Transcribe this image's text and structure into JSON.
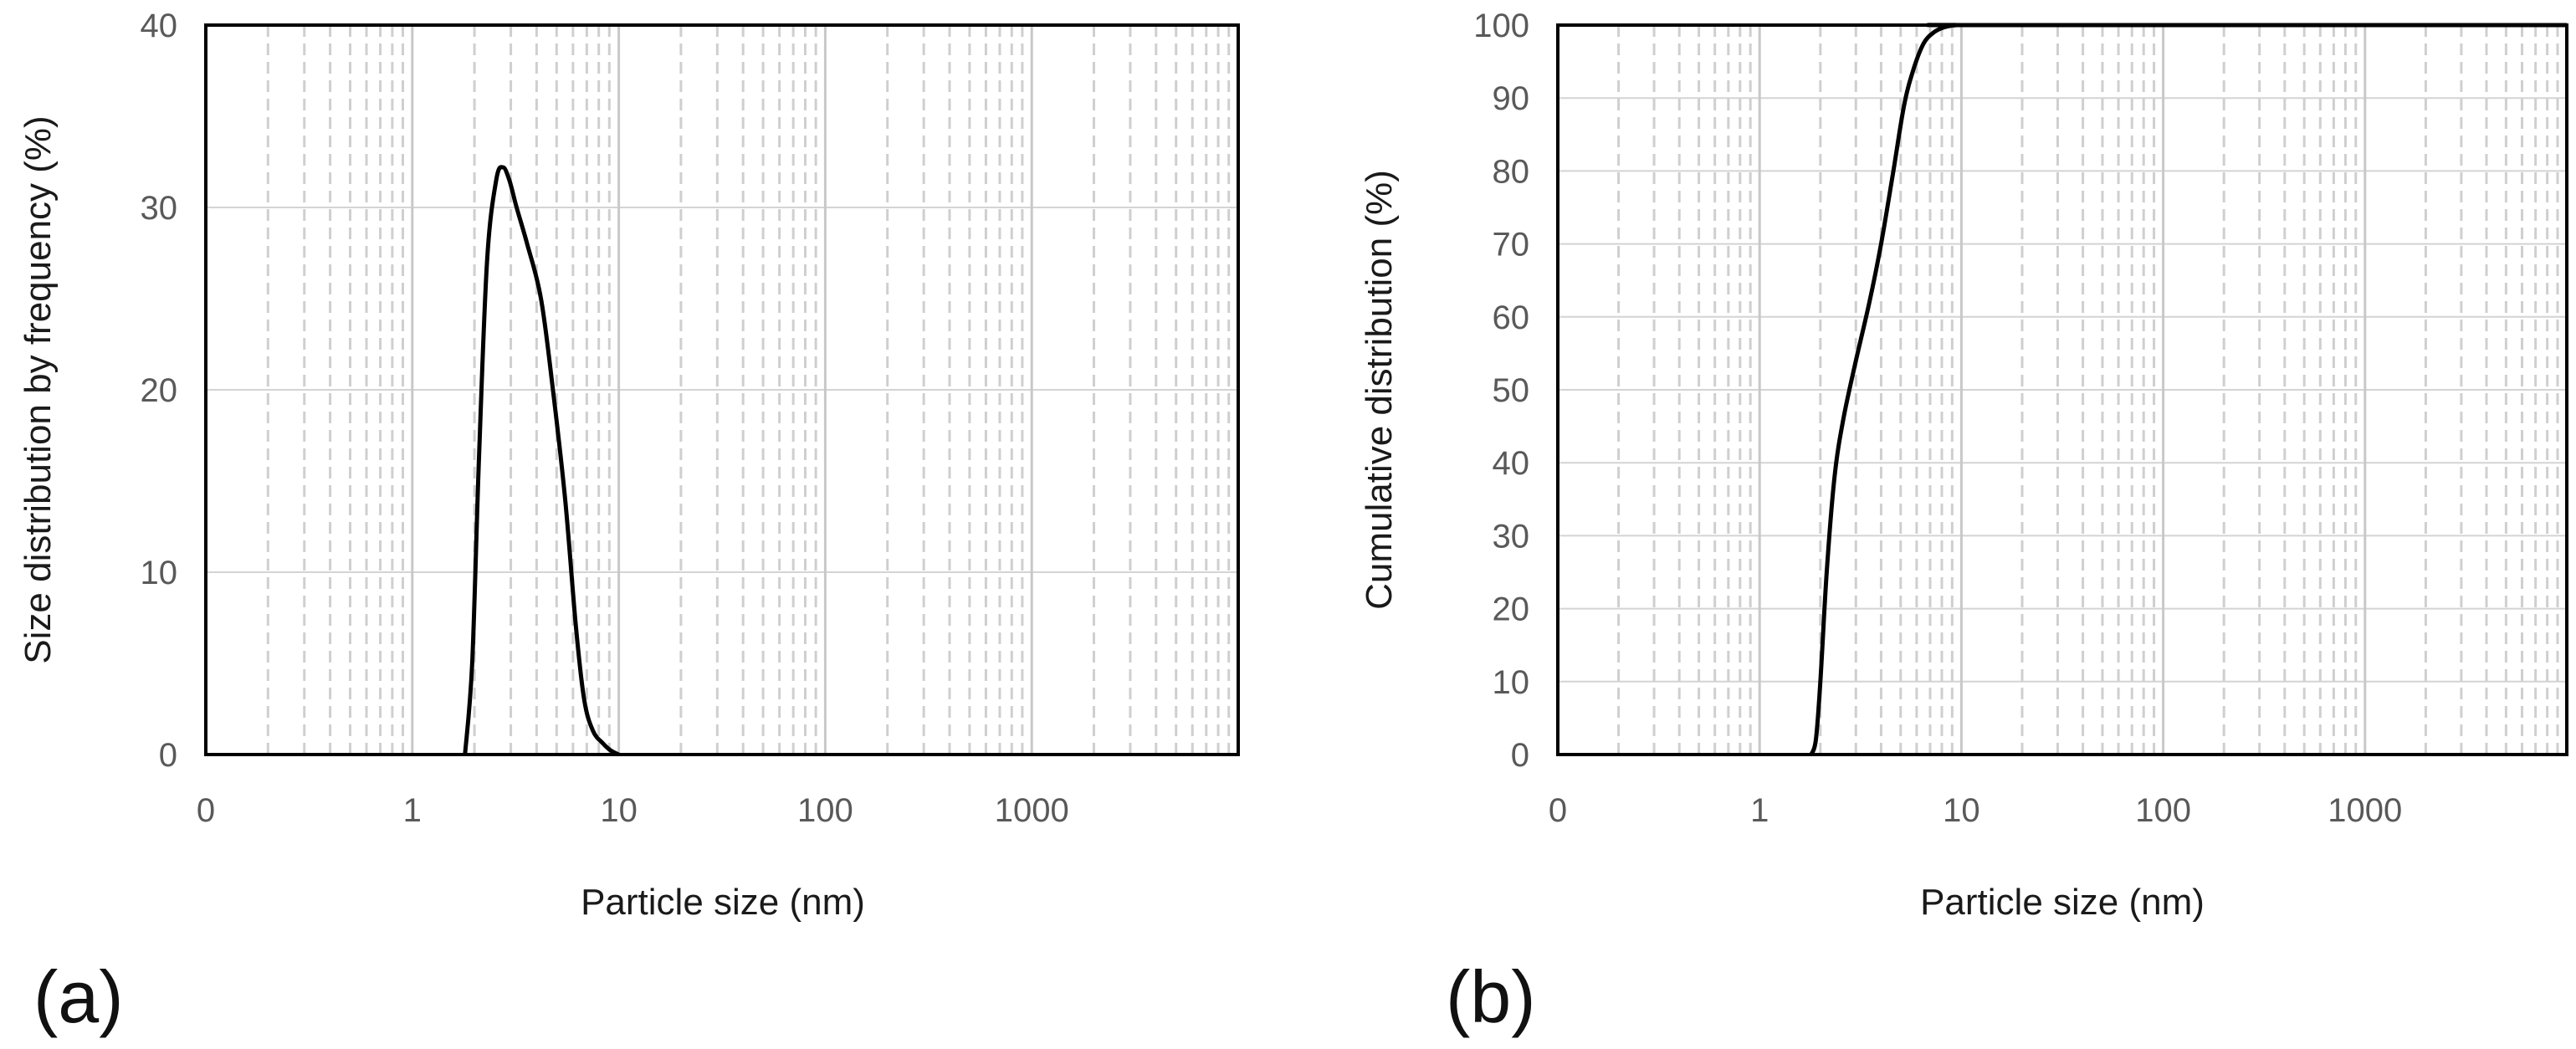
{
  "chart_data": [
    {
      "type": "line",
      "panel_label": "(a)",
      "xlabel": "Particle size (nm)",
      "ylabel": "Size distribution by frequency (%)",
      "x_scale": "log",
      "xlim": [
        0.1,
        10000
      ],
      "ylim": [
        0,
        40
      ],
      "xtick_labels": [
        "0",
        "1",
        "10",
        "100",
        "1000"
      ],
      "xtick_values": [
        0.1,
        1,
        10,
        100,
        1000
      ],
      "ytick_values": [
        0,
        10,
        20,
        30,
        40
      ],
      "ytick_labels": [
        "0",
        "10",
        "20",
        "30",
        "40"
      ],
      "grid": true,
      "line_color": "#000000",
      "series": [
        {
          "name": "Size distribution by frequency",
          "x": [
            1.8,
            1.95,
            2.1,
            2.3,
            2.55,
            2.75,
            2.95,
            3.2,
            3.6,
            4.2,
            4.8,
            5.5,
            6.2,
            6.8,
            7.5,
            8.4,
            9.2,
            10
          ],
          "y": [
            0,
            5,
            16,
            27,
            31.5,
            32.2,
            31.5,
            30,
            28,
            25,
            20,
            14,
            7,
            3,
            1.3,
            0.6,
            0.2,
            0
          ]
        }
      ]
    },
    {
      "type": "line",
      "panel_label": "(b)",
      "xlabel": "Particle size (nm)",
      "ylabel": "Cumulative distribution (%)",
      "x_scale": "log",
      "xlim": [
        0.1,
        10000
      ],
      "ylim": [
        0,
        100
      ],
      "xtick_labels": [
        "0",
        "1",
        "10",
        "100",
        "1000"
      ],
      "xtick_values": [
        0.1,
        1,
        10,
        100,
        1000
      ],
      "ytick_values": [
        0,
        10,
        20,
        30,
        40,
        50,
        60,
        70,
        80,
        90,
        100
      ],
      "ytick_labels": [
        "0",
        "10",
        "20",
        "30",
        "40",
        "50",
        "60",
        "70",
        "80",
        "90",
        "100"
      ],
      "grid": true,
      "line_color": "#000000",
      "series": [
        {
          "name": "Cumulative distribution",
          "x": [
            1.8,
            1.9,
            2.0,
            2.15,
            2.35,
            2.6,
            3.0,
            3.5,
            4.0,
            4.6,
            5.2,
            5.8,
            6.5,
            7.3,
            8.2,
            9.5,
            12,
            10000
          ],
          "y": [
            0,
            2,
            10,
            25,
            38,
            46,
            54,
            62,
            70,
            80,
            89,
            94,
            97.5,
            99,
            99.7,
            100,
            100,
            100
          ]
        }
      ]
    }
  ]
}
